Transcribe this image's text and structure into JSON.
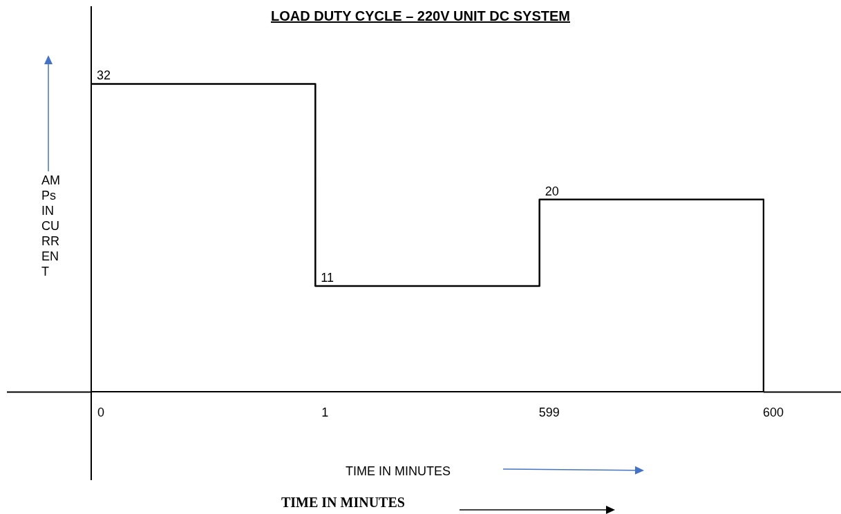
{
  "chart_data": {
    "type": "step",
    "title": "LOAD DUTY CYCLE – 220V UNIT DC SYSTEM",
    "xlabel": "TIME IN MINUTES",
    "ylabel": "AMPs IN CURRENT",
    "annotations": [
      "TIME IN MINUTES"
    ],
    "categories": [
      "0",
      "1",
      "599",
      "600"
    ],
    "series": [
      {
        "color": "#000000",
        "values": [
          32,
          11,
          20,
          0
        ],
        "value_labels": [
          "32",
          "11",
          "20",
          null
        ]
      }
    ],
    "legend": false,
    "grid": false,
    "tick_labels": "x"
  }
}
